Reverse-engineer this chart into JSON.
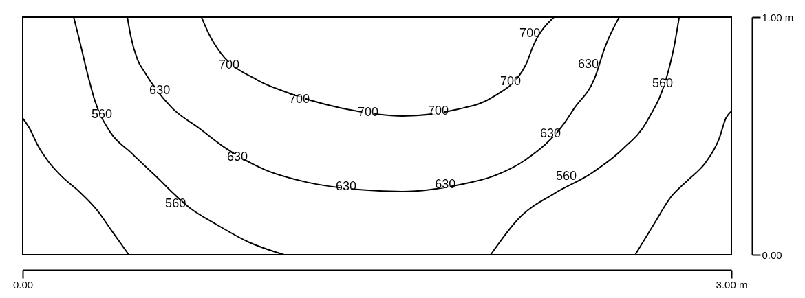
{
  "chart_data": {
    "type": "line",
    "xlim": [
      0,
      3
    ],
    "ylim": [
      0,
      1
    ],
    "xticks": [
      {
        "value": 0,
        "label": "0.00"
      },
      {
        "value": 3,
        "label": "3.00 m"
      }
    ],
    "yticks": [
      {
        "value": 0,
        "label": "0.00"
      },
      {
        "value": 1,
        "label": "1.00 m"
      }
    ],
    "legend": false,
    "marker": "none",
    "line_style": "solid",
    "series": [
      {
        "color": "#000000",
        "x": [
          0,
          0.029,
          0.064,
          0.108,
          0.166,
          0.239,
          0.312,
          0.379,
          0.449
        ],
        "values": [
          0.575,
          0.532,
          0.46,
          0.393,
          0.329,
          0.266,
          0.191,
          0.098,
          0
        ]
      },
      {
        "color": "#000000",
        "x": [
          0.216,
          0.239,
          0.274,
          0.305,
          0.37,
          0.457,
          0.559,
          0.71,
          0.821,
          0.953,
          1.107
        ],
        "values": [
          1,
          0.908,
          0.763,
          0.65,
          0.517,
          0.431,
          0.335,
          0.195,
          0.127,
          0.055,
          0
        ]
      },
      {
        "color": "#000000",
        "x": [
          0.443,
          0.457,
          0.486,
          0.515,
          0.632,
          0.748,
          0.85,
          1.025,
          1.2,
          1.44,
          1.608,
          1.86,
          1.987,
          2.132,
          2.29,
          2.336,
          2.42,
          2.467,
          2.525
        ],
        "values": [
          1,
          0.922,
          0.821,
          0.77,
          0.618,
          0.532,
          0.455,
          0.358,
          0.306,
          0.273,
          0.266,
          0.297,
          0.329,
          0.402,
          0.55,
          0.618,
          0.74,
          0.879,
          1
        ]
      },
      {
        "color": "#000000",
        "x": [
          0.757,
          0.792,
          0.82,
          0.996,
          1.1,
          1.346,
          1.608,
          1.84,
          1.987,
          2.13,
          2.161,
          2.249
        ],
        "values": [
          1,
          0.922,
          0.875,
          0.734,
          0.69,
          0.618,
          0.584,
          0.612,
          0.662,
          0.8,
          0.879,
          1
        ]
      },
      {
        "color": "#000000",
        "x": [
          2.779,
          2.758,
          2.735,
          2.642,
          2.54,
          2.409,
          2.249,
          2.103,
          1.981
        ],
        "values": [
          1,
          0.879,
          0.78,
          0.561,
          0.445,
          0.344,
          0.257,
          0.156,
          0
        ]
      },
      {
        "color": "#000000",
        "x": [
          3.0,
          2.977,
          2.948,
          2.89,
          2.817,
          2.744,
          2.671,
          2.593
        ],
        "values": [
          0.604,
          0.575,
          0.488,
          0.387,
          0.315,
          0.243,
          0.127,
          0
        ]
      }
    ],
    "annotations": [
      {
        "text": "700",
        "x": 2.147,
        "y": 0.931
      },
      {
        "text": "700",
        "x": 0.874,
        "y": 0.798
      },
      {
        "text": "700",
        "x": 2.065,
        "y": 0.728
      },
      {
        "text": "700",
        "x": 1.171,
        "y": 0.653
      },
      {
        "text": "700",
        "x": 1.462,
        "y": 0.598
      },
      {
        "text": "700",
        "x": 1.759,
        "y": 0.604
      },
      {
        "text": "630",
        "x": 0.58,
        "y": 0.691
      },
      {
        "text": "630",
        "x": 2.394,
        "y": 0.801
      },
      {
        "text": "630",
        "x": 2.234,
        "y": 0.509
      },
      {
        "text": "630",
        "x": 0.909,
        "y": 0.41
      },
      {
        "text": "630",
        "x": 1.369,
        "y": 0.286
      },
      {
        "text": "630",
        "x": 1.789,
        "y": 0.295
      },
      {
        "text": "560",
        "x": 0.335,
        "y": 0.59
      },
      {
        "text": "560",
        "x": 0.647,
        "y": 0.214
      },
      {
        "text": "560",
        "x": 2.709,
        "y": 0.72
      },
      {
        "text": "560",
        "x": 2.301,
        "y": 0.329
      }
    ]
  }
}
